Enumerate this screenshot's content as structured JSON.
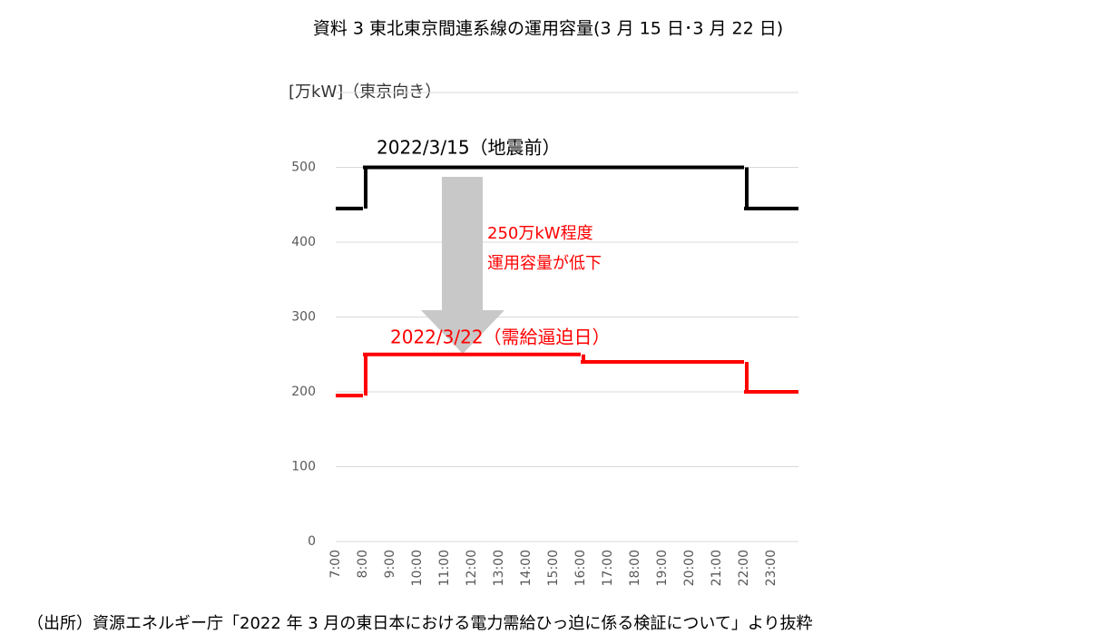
{
  "chart_data": {
    "type": "step",
    "title": "資料 3 東北東京間連系線の運用容量(3 月 15 日･3 月 22 日)",
    "y_label": "[万kW]（東京向き）",
    "categories": [
      "7:00",
      "8:00",
      "9:00",
      "10:00",
      "11:00",
      "12:00",
      "13:00",
      "14:00",
      "15:00",
      "16:00",
      "17:00",
      "18:00",
      "19:00",
      "20:00",
      "21:00",
      "22:00",
      "23:00"
    ],
    "series": [
      {
        "name": "2022/3/15（地震前）",
        "color": "#000000",
        "values": [
          445,
          500,
          500,
          500,
          500,
          500,
          500,
          500,
          500,
          500,
          500,
          500,
          500,
          500,
          500,
          445,
          445
        ]
      },
      {
        "name": "2022/3/22（需給逼迫日）",
        "color": "#ff0000",
        "values": [
          195,
          250,
          250,
          250,
          250,
          250,
          250,
          250,
          250,
          240,
          240,
          240,
          240,
          240,
          240,
          200,
          200
        ]
      }
    ],
    "annotation": [
      "250万kW程度",
      "運用容量が低下"
    ],
    "ylim": [
      0,
      600
    ],
    "yticks": [
      0,
      100,
      200,
      300,
      400,
      500
    ],
    "grid": true,
    "source": "（出所）資源エネルギー庁「2022 年 3 月の東日本における電力需給ひっ迫に係る検証について」より抜粋"
  }
}
